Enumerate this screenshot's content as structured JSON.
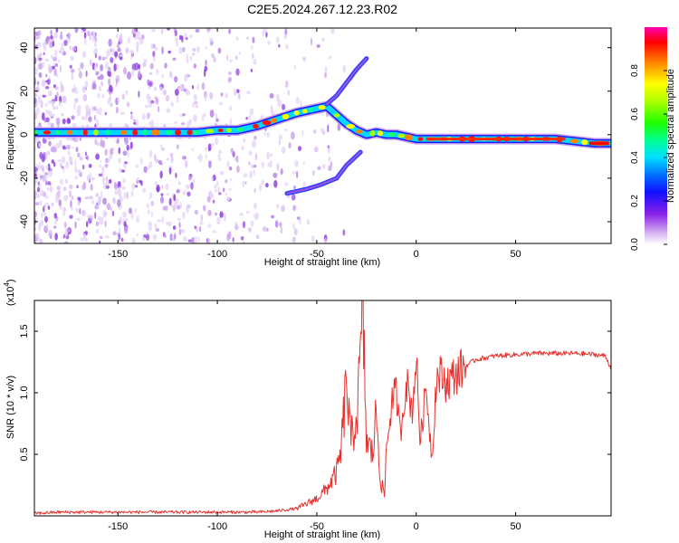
{
  "title": "C2E5.2024.267.12.23.R02",
  "chart_data": [
    {
      "type": "heatmap",
      "xlabel": "Height of straight line (km)",
      "ylabel": "Frequency (Hz)",
      "xlim": [
        -192,
        98
      ],
      "ylim": [
        -50,
        49
      ],
      "xticks": [
        -150,
        -100,
        -50,
        0,
        50
      ],
      "yticks": [
        -40,
        -20,
        0,
        20,
        40
      ],
      "colorbar": {
        "label": "Normalized spectral amplitude",
        "range": [
          0.0,
          1.0
        ],
        "ticks": [
          0.0,
          0.2,
          0.4,
          0.6,
          0.8
        ],
        "tick_labels": [
          "0.0",
          "0.2",
          "0.4",
          "0.6",
          "0.8"
        ]
      },
      "ridge": {
        "x": [
          -192,
          -170,
          -150,
          -130,
          -110,
          -100,
          -90,
          -80,
          -70,
          -60,
          -50,
          -45,
          -40,
          -35,
          -30,
          -25,
          -20,
          -15,
          -10,
          -5,
          0,
          10,
          30,
          50,
          70,
          80,
          90,
          98
        ],
        "y": [
          1,
          1,
          1,
          1,
          1,
          2,
          2,
          4,
          7,
          10,
          12,
          13,
          9,
          5,
          2,
          0,
          1,
          0,
          0,
          -1,
          -2,
          -2,
          -2,
          -2,
          -2,
          -3,
          -4,
          -4
        ]
      },
      "branches": [
        {
          "x": [
            -45,
            -40,
            -35,
            -30,
            -25
          ],
          "y": [
            14,
            18,
            24,
            30,
            35
          ]
        },
        {
          "x": [
            -65,
            -55,
            -48,
            -40,
            -35,
            -28
          ],
          "y": [
            -27,
            -25,
            -23,
            -20,
            -14,
            -8
          ]
        }
      ]
    },
    {
      "type": "line",
      "xlabel": "Height of straight line (km)",
      "ylabel": "SNR (10 * v/v)",
      "y_multiplier": "(x10",
      "y_multiplier_exp": "4",
      "y_multiplier_close": ")",
      "xlim": [
        -192,
        98
      ],
      "ylim": [
        0,
        1.75
      ],
      "xticks": [
        -150,
        -100,
        -50,
        0,
        50
      ],
      "yticks": [
        0.5,
        1.0,
        1.5
      ],
      "ytick_labels": [
        "0.5",
        "1.0",
        "1.5"
      ],
      "color": "#e8302c",
      "series": [
        {
          "x": [
            -192,
            -180,
            -160,
            -140,
            -120,
            -100,
            -80,
            -70,
            -60,
            -55,
            -50,
            -45,
            -40,
            -38,
            -35,
            -33,
            -30,
            -28,
            -27,
            -25,
            -22,
            -20,
            -18,
            -16,
            -15,
            -12,
            -10,
            -8,
            -5,
            -2,
            0,
            2,
            5,
            8,
            10,
            12,
            15,
            18,
            20,
            25,
            30,
            40,
            50,
            60,
            70,
            80,
            90,
            95,
            98
          ],
          "y": [
            0.02,
            0.03,
            0.03,
            0.03,
            0.03,
            0.03,
            0.03,
            0.04,
            0.06,
            0.1,
            0.14,
            0.22,
            0.35,
            0.5,
            1.1,
            0.6,
            0.8,
            1.25,
            1.75,
            0.6,
            0.5,
            0.85,
            0.3,
            0.15,
            0.55,
            0.95,
            1.0,
            0.65,
            1.1,
            0.85,
            1.3,
            0.6,
            1.05,
            0.45,
            1.1,
            1.15,
            1.08,
            1.12,
            1.15,
            1.22,
            1.27,
            1.3,
            1.31,
            1.32,
            1.32,
            1.32,
            1.31,
            1.3,
            1.2
          ]
        }
      ]
    }
  ]
}
